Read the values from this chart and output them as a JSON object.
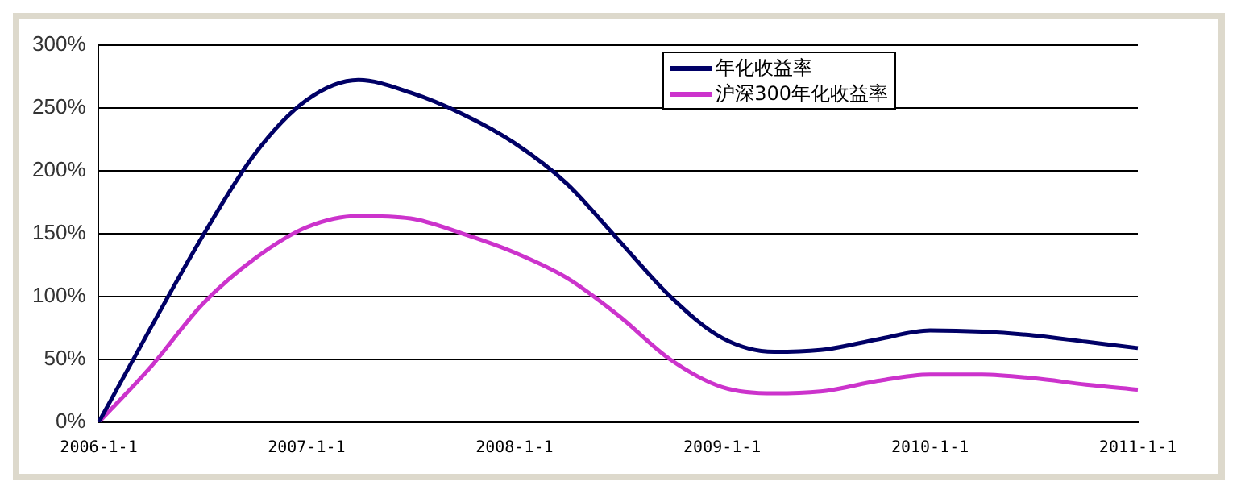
{
  "chart_data": {
    "type": "line",
    "categories": [
      "2006-1-1",
      null,
      null,
      null,
      "2007-1-1",
      null,
      null,
      null,
      "2008-1-1",
      null,
      null,
      null,
      "2009-1-1",
      null,
      null,
      null,
      "2010-1-1",
      null,
      null,
      null,
      "2011-1-1"
    ],
    "series": [
      {
        "name": "年化收益率",
        "color": "#000066",
        "values": [
          0,
          75,
          148,
          213,
          256,
          272,
          262,
          245,
          222,
          190,
          145,
          100,
          67,
          56,
          58,
          66,
          73,
          72,
          69,
          64,
          59
        ]
      },
      {
        "name": "沪深300年化收益率",
        "color": "#cc33cc",
        "values": [
          0,
          44,
          94,
          130,
          155,
          164,
          162,
          150,
          135,
          115,
          85,
          50,
          28,
          23,
          25,
          33,
          38,
          38,
          35,
          30,
          26
        ]
      }
    ],
    "ylim": [
      0,
      300
    ],
    "yticks": [
      {
        "value": 0,
        "label": "0%"
      },
      {
        "value": 50,
        "label": "50%"
      },
      {
        "value": 100,
        "label": "100%"
      },
      {
        "value": 150,
        "label": "150%"
      },
      {
        "value": 200,
        "label": "200%"
      },
      {
        "value": 250,
        "label": "250%"
      },
      {
        "value": 300,
        "label": "300%"
      }
    ],
    "grid": "y",
    "legend": "top right",
    "marker": "none",
    "line_style": "solid"
  }
}
